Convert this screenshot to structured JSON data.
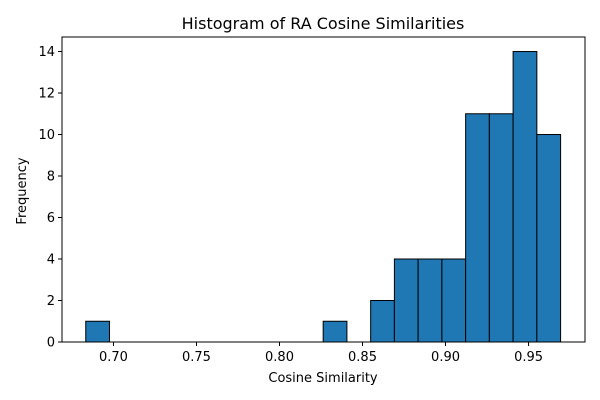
{
  "chart_data": {
    "type": "bar",
    "title": "Histogram of RA Cosine Similarities",
    "xlabel": "Cosine Similarity",
    "ylabel": "Frequency",
    "bin_edges": [
      0.6833,
      0.6976,
      0.7119,
      0.7262,
      0.7405,
      0.7548,
      0.7691,
      0.7834,
      0.7977,
      0.812,
      0.8263,
      0.8406,
      0.8549,
      0.8692,
      0.8835,
      0.8978,
      0.9121,
      0.9264,
      0.9407,
      0.955,
      0.9693
    ],
    "values": [
      1,
      0,
      0,
      0,
      0,
      0,
      0,
      0,
      0,
      0,
      1,
      0,
      2,
      4,
      4,
      4,
      11,
      11,
      14,
      10
    ],
    "xlim": [
      0.669,
      0.984
    ],
    "ylim": [
      0,
      14.7
    ],
    "xticks": [
      0.7,
      0.75,
      0.8,
      0.85,
      0.9,
      0.95
    ],
    "xtick_labels": [
      "0.70",
      "0.75",
      "0.80",
      "0.85",
      "0.90",
      "0.95"
    ],
    "yticks": [
      0,
      2,
      4,
      6,
      8,
      10,
      12,
      14
    ],
    "ytick_labels": [
      "0",
      "2",
      "4",
      "6",
      "8",
      "10",
      "12",
      "14"
    ],
    "bar_color": "#1f77b4",
    "edge_color": "#000000",
    "grid": false
  }
}
